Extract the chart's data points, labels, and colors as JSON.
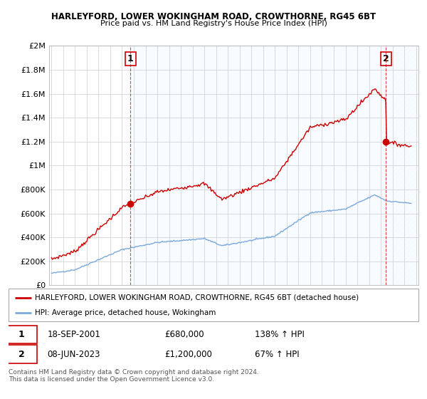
{
  "title1": "HARLEYFORD, LOWER WOKINGHAM ROAD, CROWTHORNE, RG45 6BT",
  "title2": "Price paid vs. HM Land Registry's House Price Index (HPI)",
  "legend_label_red": "HARLEYFORD, LOWER WOKINGHAM ROAD, CROWTHORNE, RG45 6BT (detached house)",
  "legend_label_blue": "HPI: Average price, detached house, Wokingham",
  "annotation1_date": "18-SEP-2001",
  "annotation1_price": "£680,000",
  "annotation1_hpi": "138% ↑ HPI",
  "annotation2_date": "08-JUN-2023",
  "annotation2_price": "£1,200,000",
  "annotation2_hpi": "67% ↑ HPI",
  "footer": "Contains HM Land Registry data © Crown copyright and database right 2024.\nThis data is licensed under the Open Government Licence v3.0.",
  "red_color": "#cc0000",
  "blue_color": "#7aaadd",
  "shade_color": "#ddeeff",
  "grid_color": "#cccccc",
  "ylim": [
    0,
    2000000
  ],
  "yticks": [
    0,
    200000,
    400000,
    600000,
    800000,
    1000000,
    1200000,
    1400000,
    1600000,
    1800000,
    2000000
  ],
  "ytick_labels": [
    "£0",
    "£200K",
    "£400K",
    "£600K",
    "£800K",
    "£1M",
    "£1.2M",
    "£1.4M",
    "£1.6M",
    "£1.8M",
    "£2M"
  ],
  "sale1_year": 2001.72,
  "sale1_price": 680000,
  "sale2_year": 2023.44,
  "sale2_price": 1200000,
  "xmin": 1995,
  "xmax": 2026
}
